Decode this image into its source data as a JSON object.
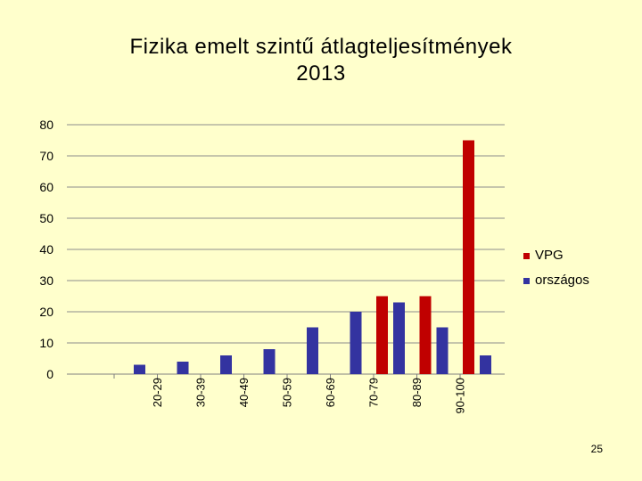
{
  "title_line1": "Fizika emelt szintű átlagteljesítmények",
  "title_line2": "2013",
  "page_number": "25",
  "chart_data": {
    "type": "bar",
    "categories": [
      "",
      "20-29",
      "30-39",
      "40-49",
      "50-59",
      "60-69",
      "70-79",
      "80-89",
      "90-100"
    ],
    "series": [
      {
        "name": "VPG",
        "color": "#C00000",
        "values": [
          0,
          0,
          0,
          0,
          0,
          0,
          25,
          25,
          75
        ]
      },
      {
        "name": "országos",
        "color": "#3333A0",
        "values": [
          3,
          4,
          6,
          8,
          15,
          20,
          23,
          15,
          6
        ]
      }
    ],
    "yticks": [
      "0",
      "10",
      "20",
      "30",
      "40",
      "50",
      "60",
      "70",
      "80"
    ],
    "ylim": [
      0,
      80
    ],
    "grid": true,
    "legend_position": "right"
  }
}
